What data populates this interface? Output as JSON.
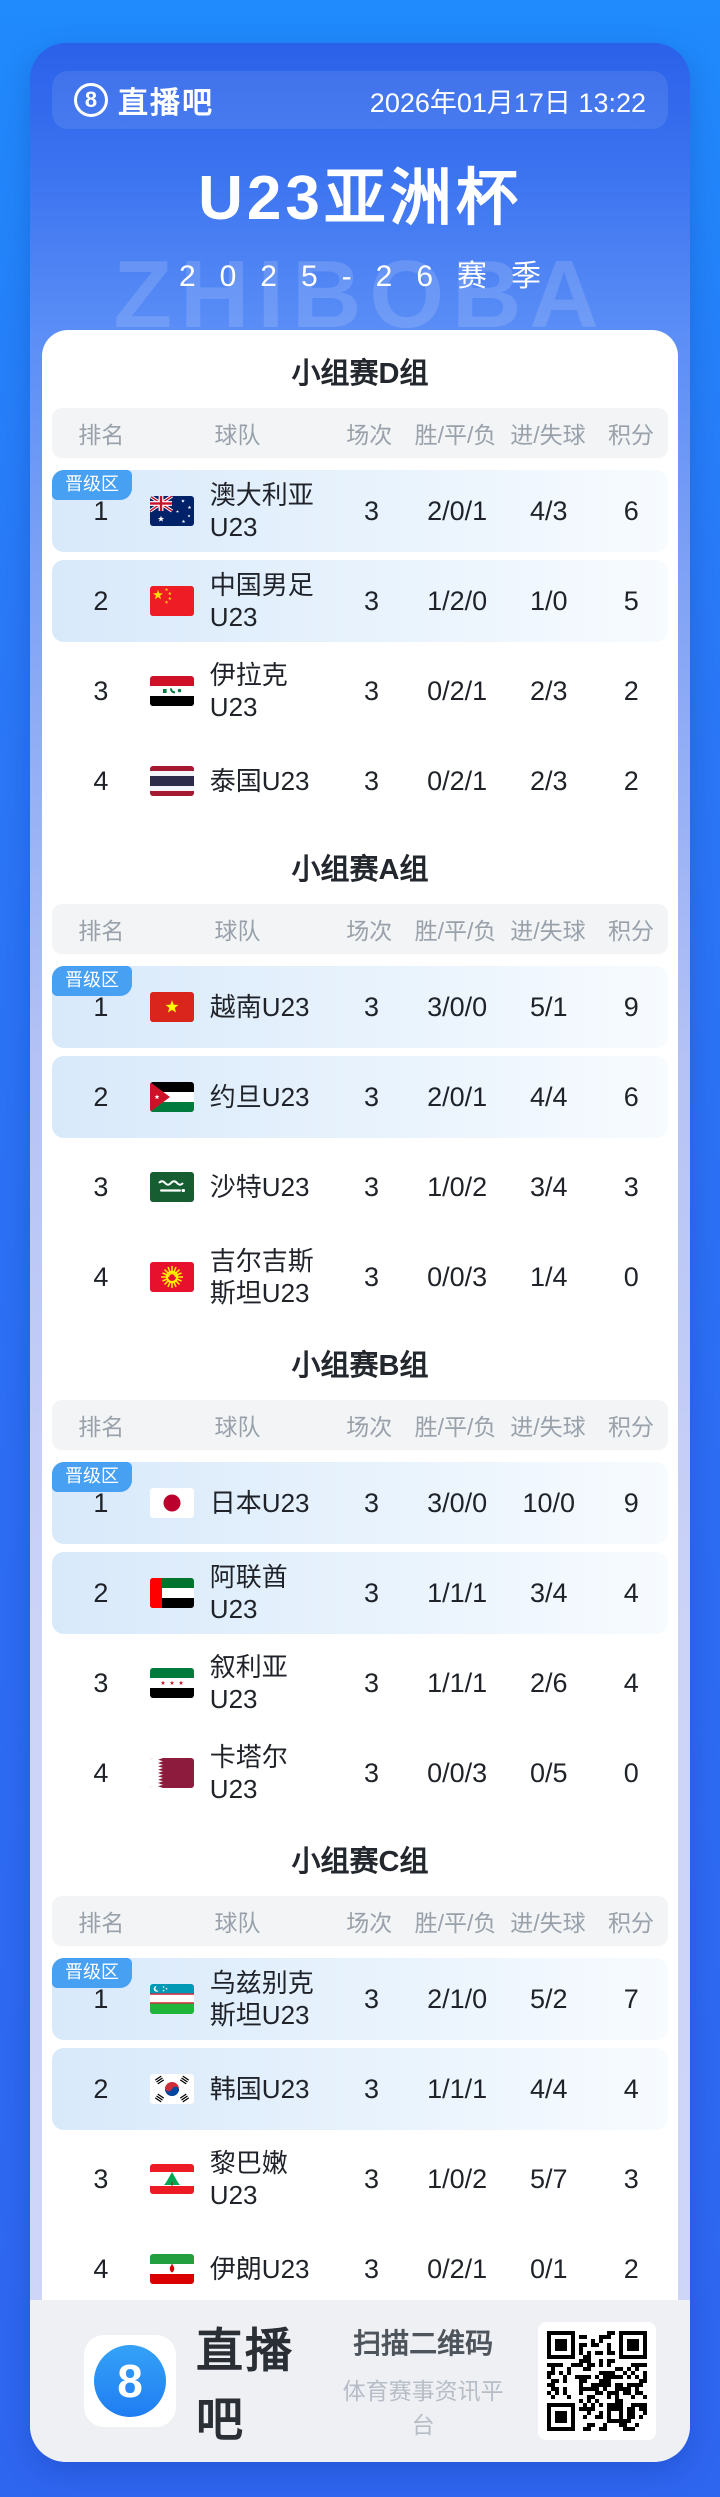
{
  "header": {
    "logo_number": "8",
    "brand": "直播吧",
    "datetime": "2026年01月17日 13:22",
    "title": "U23亚洲杯",
    "season": "2025-26赛季",
    "watermark": "ZHIBOBA"
  },
  "table": {
    "columns": [
      "排名",
      "球队",
      "场次",
      "胜/平/负",
      "进/失球",
      "积分"
    ],
    "promotion_label": "晋级区"
  },
  "groups": [
    {
      "title": "小组赛D组",
      "teams": [
        {
          "rank": "1",
          "flag": "au",
          "name": "澳大利亚U23",
          "played": "3",
          "wdl": "2/0/1",
          "goals": "4/3",
          "points": "6",
          "highlight": true,
          "badge": true
        },
        {
          "rank": "2",
          "flag": "cn",
          "name": "中国男足U23",
          "played": "3",
          "wdl": "1/2/0",
          "goals": "1/0",
          "points": "5",
          "highlight": true,
          "badge": false
        },
        {
          "rank": "3",
          "flag": "iq",
          "name": "伊拉克U23",
          "played": "3",
          "wdl": "0/2/1",
          "goals": "2/3",
          "points": "2",
          "highlight": false,
          "badge": false
        },
        {
          "rank": "4",
          "flag": "th",
          "name": "泰国U23",
          "played": "3",
          "wdl": "0/2/1",
          "goals": "2/3",
          "points": "2",
          "highlight": false,
          "badge": false
        }
      ]
    },
    {
      "title": "小组赛A组",
      "teams": [
        {
          "rank": "1",
          "flag": "vn",
          "name": "越南U23",
          "played": "3",
          "wdl": "3/0/0",
          "goals": "5/1",
          "points": "9",
          "highlight": true,
          "badge": true
        },
        {
          "rank": "2",
          "flag": "jo",
          "name": "约旦U23",
          "played": "3",
          "wdl": "2/0/1",
          "goals": "4/4",
          "points": "6",
          "highlight": true,
          "badge": false
        },
        {
          "rank": "3",
          "flag": "sa",
          "name": "沙特U23",
          "played": "3",
          "wdl": "1/0/2",
          "goals": "3/4",
          "points": "3",
          "highlight": false,
          "badge": false
        },
        {
          "rank": "4",
          "flag": "kg",
          "name": "吉尔吉斯斯坦U23",
          "played": "3",
          "wdl": "0/0/3",
          "goals": "1/4",
          "points": "0",
          "highlight": false,
          "badge": false
        }
      ]
    },
    {
      "title": "小组赛B组",
      "teams": [
        {
          "rank": "1",
          "flag": "jp",
          "name": "日本U23",
          "played": "3",
          "wdl": "3/0/0",
          "goals": "10/0",
          "points": "9",
          "highlight": true,
          "badge": true
        },
        {
          "rank": "2",
          "flag": "ae",
          "name": "阿联酋U23",
          "played": "3",
          "wdl": "1/1/1",
          "goals": "3/4",
          "points": "4",
          "highlight": true,
          "badge": false
        },
        {
          "rank": "3",
          "flag": "sy",
          "name": "叙利亚U23",
          "played": "3",
          "wdl": "1/1/1",
          "goals": "2/6",
          "points": "4",
          "highlight": false,
          "badge": false
        },
        {
          "rank": "4",
          "flag": "qa",
          "name": "卡塔尔U23",
          "played": "3",
          "wdl": "0/0/3",
          "goals": "0/5",
          "points": "0",
          "highlight": false,
          "badge": false
        }
      ]
    },
    {
      "title": "小组赛C组",
      "teams": [
        {
          "rank": "1",
          "flag": "uz",
          "name": "乌兹别克斯坦U23",
          "played": "3",
          "wdl": "2/1/0",
          "goals": "5/2",
          "points": "7",
          "highlight": true,
          "badge": true
        },
        {
          "rank": "2",
          "flag": "kr",
          "name": "韩国U23",
          "played": "3",
          "wdl": "1/1/1",
          "goals": "4/4",
          "points": "4",
          "highlight": true,
          "badge": false
        },
        {
          "rank": "3",
          "flag": "lb",
          "name": "黎巴嫩U23",
          "played": "3",
          "wdl": "1/0/2",
          "goals": "5/7",
          "points": "3",
          "highlight": false,
          "badge": false
        },
        {
          "rank": "4",
          "flag": "ir",
          "name": "伊朗U23",
          "played": "3",
          "wdl": "0/2/1",
          "goals": "0/1",
          "points": "2",
          "highlight": false,
          "badge": false
        }
      ]
    }
  ],
  "footer": {
    "logo_number": "8",
    "brand": "直播吧",
    "scan_text": "扫描二维码",
    "platform_text": "体育赛事资讯平台"
  },
  "colors": {
    "accent_blue": "#2f6cf3",
    "badge_blue": "#47a0f2",
    "highlight_row": "#d8e9fa",
    "footer_gray": "#eef0f4"
  }
}
